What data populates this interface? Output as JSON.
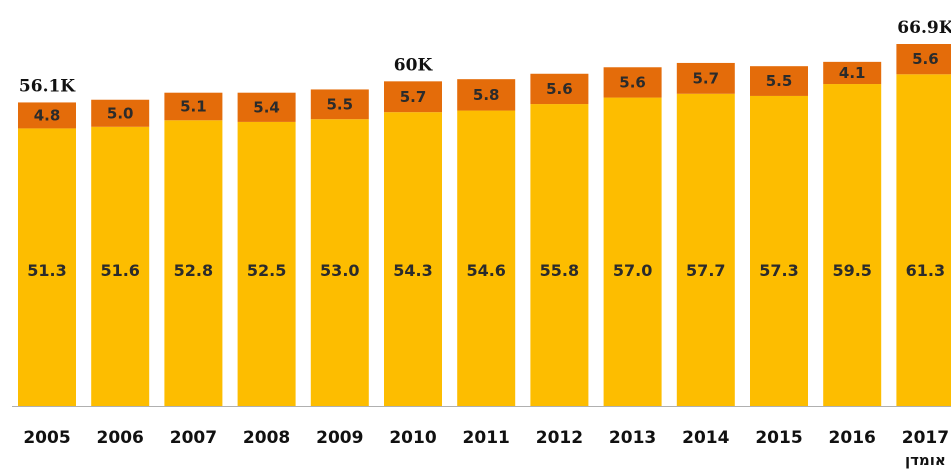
{
  "colors": {
    "base": "#FDBD00",
    "top": "#E46C0A",
    "axis": "#b0b0b0"
  },
  "chart_data": {
    "type": "bar",
    "stacked": true,
    "categories": [
      "2005",
      "2006",
      "2007",
      "2008",
      "2009",
      "2010",
      "2011",
      "2012",
      "2013",
      "2014",
      "2015",
      "2016",
      "2017"
    ],
    "series": [
      {
        "values": [
          51.3,
          51.6,
          52.8,
          52.5,
          53.0,
          54.3,
          54.6,
          55.8,
          57.0,
          57.7,
          57.3,
          59.5,
          61.3
        ]
      },
      {
        "values": [
          4.8,
          5.0,
          5.1,
          5.4,
          5.5,
          5.7,
          5.8,
          5.6,
          5.6,
          5.7,
          5.5,
          4.1,
          5.6
        ]
      }
    ],
    "base_labels": [
      "51.3",
      "51.6",
      "52.8",
      "52.5",
      "53.0",
      "54.3",
      "54.6",
      "55.8",
      "57.0",
      "57.7",
      "57.3",
      "59.5",
      "61.3"
    ],
    "top_labels": [
      "4.8",
      "5.0",
      "5.1",
      "5.4",
      "5.5",
      "5.7",
      "5.8",
      "5.6",
      "5.6",
      "5.7",
      "5.5",
      "4.1",
      "5.6"
    ],
    "total_annotations": [
      {
        "index": 0,
        "label": "56.1K"
      },
      {
        "index": 5,
        "label": "60K"
      },
      {
        "index": 12,
        "label": "66.9K"
      }
    ],
    "category_note": {
      "index": 12,
      "label": "אומדן"
    },
    "grid": false,
    "legend": "none"
  }
}
